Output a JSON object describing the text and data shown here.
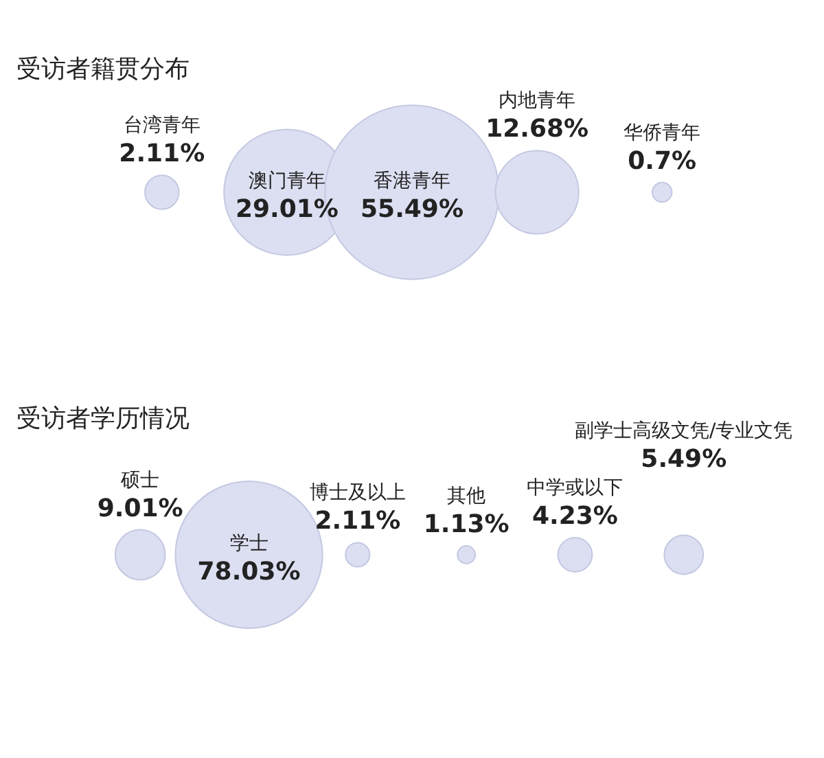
{
  "chart_data": [
    {
      "type": "other",
      "title": "受访者籍贯分布",
      "color": "#dcdff1",
      "categories": [
        "台湾青年",
        "澳门青年",
        "香港青年",
        "内地青年",
        "华侨青年"
      ],
      "values": [
        2.11,
        29.01,
        55.49,
        12.68,
        0.7
      ],
      "value_labels": [
        "2.11%",
        "29.01%",
        "55.49%",
        "12.68%",
        "0.7%"
      ]
    },
    {
      "type": "other",
      "title": "受访者学历情况",
      "color": "#dcdff1",
      "categories": [
        "硕士",
        "学士",
        "博士及以上",
        "其他",
        "中学或以下",
        "副学士高级文凭/专业文凭"
      ],
      "values": [
        9.01,
        78.03,
        2.11,
        1.13,
        4.23,
        5.49
      ],
      "value_labels": [
        "9.01%",
        "78.03%",
        "2.11%",
        "1.13%",
        "4.23%",
        "5.49%"
      ]
    }
  ]
}
